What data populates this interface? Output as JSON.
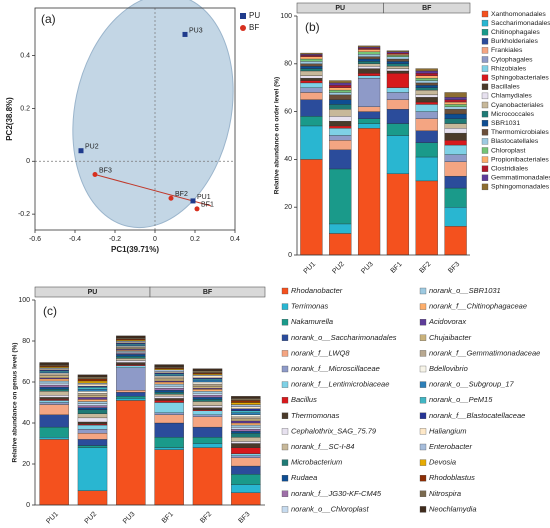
{
  "chart_data": [
    {
      "type": "scatter",
      "label": "(a)",
      "xlabel": "PC1(39.71%)",
      "ylabel": "PC2(38.8%)",
      "xlim": [
        -0.6,
        0.4
      ],
      "xticks": [
        -0.6,
        -0.4,
        -0.2,
        0,
        0.2,
        0.4
      ],
      "ylim": [
        -0.26,
        0.58
      ],
      "yticks": [
        -0.2,
        0,
        0.2,
        0.4
      ],
      "legend": "top-right",
      "series": [
        {
          "name": "PU",
          "color": "#1f3b8c",
          "marker": "square",
          "labels": [
            "PU1",
            "PU2",
            "PU3"
          ],
          "x": [
            0.19,
            -0.37,
            0.15
          ],
          "y": [
            -0.15,
            0.04,
            0.48
          ]
        },
        {
          "name": "BF",
          "color": "#d7301f",
          "marker": "circle",
          "labels": [
            "BF1",
            "BF2",
            "BF3"
          ],
          "x": [
            0.21,
            0.08,
            -0.3
          ],
          "y": [
            -0.18,
            -0.14,
            -0.05
          ]
        }
      ]
    },
    {
      "type": "stacked-bar",
      "label": "(b)",
      "ylabel": "Relative abundance on order level (%)",
      "groups": [
        "PU",
        "BF"
      ],
      "categories": [
        "PU1",
        "PU2",
        "PU3",
        "BF1",
        "BF2",
        "BF3"
      ],
      "ylim": [
        0,
        100
      ],
      "yticks": [
        0,
        20,
        40,
        60,
        80,
        100
      ],
      "series": [
        {
          "name": "Xanthomonadales",
          "color": "#f4511e",
          "values": [
            40,
            9,
            53,
            34,
            31,
            12
          ]
        },
        {
          "name": "Saccharimonadales",
          "color": "#29b6d1",
          "values": [
            14,
            4,
            2,
            16,
            10,
            8
          ]
        },
        {
          "name": "Chitinophagales",
          "color": "#1a9a8a",
          "values": [
            4,
            23,
            2,
            5,
            6,
            8
          ]
        },
        {
          "name": "Burkholderiales",
          "color": "#2b4c9b",
          "values": [
            7,
            8,
            3,
            6,
            5,
            5
          ]
        },
        {
          "name": "Frankiales",
          "color": "#f4a582",
          "values": [
            3,
            4,
            2,
            4,
            5,
            6
          ]
        },
        {
          "name": "Cytophagales",
          "color": "#8e9ac8",
          "values": [
            2,
            2,
            12,
            3,
            3,
            3
          ]
        },
        {
          "name": "Rhizobiales",
          "color": "#7fd1e6",
          "values": [
            2,
            3,
            1,
            2,
            3,
            4
          ]
        },
        {
          "name": "Sphingobacteriales",
          "color": "#d7191c",
          "values": [
            1,
            1,
            1,
            6,
            1,
            2
          ]
        },
        {
          "name": "Bacillales",
          "color": "#4a3a2a",
          "values": [
            1,
            2,
            2,
            1,
            2,
            3
          ]
        },
        {
          "name": "Chlamydiales",
          "color": "#e7e1ef",
          "values": [
            1,
            2,
            1,
            1,
            1,
            2
          ]
        },
        {
          "name": "Cyanobacteriales",
          "color": "#c7b89a",
          "values": [
            2,
            3,
            1,
            1,
            2,
            2
          ]
        },
        {
          "name": "Micrococcales",
          "color": "#1f7a75",
          "values": [
            1,
            2,
            1,
            1,
            1,
            2
          ]
        },
        {
          "name": "SBR1031",
          "color": "#0e4d92",
          "values": [
            1,
            2,
            1,
            1,
            1,
            2
          ]
        },
        {
          "name": "Thermomicrobiales",
          "color": "#6b4f3a",
          "values": [
            1,
            2,
            1,
            1,
            1,
            2
          ]
        },
        {
          "name": "Blastocatellales",
          "color": "#9ecae1",
          "values": [
            1,
            1,
            1,
            1,
            1,
            1
          ]
        },
        {
          "name": "Chloroplast",
          "color": "#74c476",
          "values": [
            1,
            1,
            1,
            0.5,
            1,
            1
          ]
        },
        {
          "name": "Propionibacteriales",
          "color": "#fdae6b",
          "values": [
            1,
            1,
            1,
            0.5,
            1,
            1
          ]
        },
        {
          "name": "Clostridiales",
          "color": "#b2182b",
          "values": [
            0.5,
            1,
            0.5,
            0.5,
            1,
            1
          ]
        },
        {
          "name": "Gemmatimonadales",
          "color": "#5e3c99",
          "values": [
            0.5,
            1,
            0.5,
            0.5,
            1,
            1
          ]
        },
        {
          "name": "Sphingomonadales",
          "color": "#8c6d31",
          "values": [
            0.5,
            1,
            0.5,
            0.5,
            1,
            2
          ]
        }
      ]
    },
    {
      "type": "stacked-bar",
      "label": "(c)",
      "ylabel": "Relative abundance on genus level (%)",
      "groups": [
        "PU",
        "BF"
      ],
      "categories": [
        "PU1",
        "PU2",
        "PU3",
        "BF1",
        "BF2",
        "BF3"
      ],
      "ylim": [
        0,
        100
      ],
      "yticks": [
        0,
        20,
        40,
        60,
        80,
        100
      ],
      "series": [
        {
          "name": "Rhodanobacter",
          "color": "#f4511e",
          "values": [
            32,
            7,
            51,
            27,
            28,
            6
          ]
        },
        {
          "name": "Terrimonas",
          "color": "#29b6d1",
          "values": [
            1,
            21,
            1,
            1,
            2,
            4
          ]
        },
        {
          "name": "Nakamurella",
          "color": "#1a9a8a",
          "values": [
            5,
            1,
            1,
            5,
            3,
            5
          ]
        },
        {
          "name": "norank_o__Saccharimonadales",
          "color": "#2b4c9b",
          "values": [
            6,
            3,
            2,
            7,
            5,
            4
          ]
        },
        {
          "name": "norank_f__LWQ8",
          "color": "#f4a582",
          "values": [
            5,
            3,
            1,
            4,
            5,
            4
          ]
        },
        {
          "name": "norank_f__Microscillaceae",
          "color": "#8e9ac8",
          "values": [
            1,
            2,
            11,
            1,
            1,
            1
          ]
        },
        {
          "name": "norank_f__Lentimicrobiaceae",
          "color": "#7fd1e6",
          "values": [
            1,
            2,
            1,
            5,
            2,
            1
          ]
        },
        {
          "name": "Bacillus",
          "color": "#d7191c",
          "values": [
            0.5,
            0.5,
            0.5,
            1,
            0.5,
            3
          ]
        },
        {
          "name": "Thermomonas",
          "color": "#4a3a2a",
          "values": [
            1,
            1,
            1,
            1,
            1,
            2
          ]
        },
        {
          "name": "Cephalothrix_SAG_75.79",
          "color": "#e7e1ef",
          "values": [
            1,
            2,
            1,
            1,
            1,
            1
          ]
        },
        {
          "name": "norank_f__SC-I-84",
          "color": "#c7b89a",
          "values": [
            2,
            2,
            1,
            1,
            2,
            2
          ]
        },
        {
          "name": "Microbacterium",
          "color": "#1f7a75",
          "values": [
            1,
            2,
            1,
            1,
            1,
            2
          ]
        },
        {
          "name": "Rudaea",
          "color": "#0e4d92",
          "values": [
            1,
            1,
            1,
            1,
            1,
            1
          ]
        },
        {
          "name": "norank_f__JG30-KF-CM45",
          "color": "#9e6fa8",
          "values": [
            1,
            1,
            0.5,
            1,
            1,
            1
          ]
        },
        {
          "name": "norank_o__Chloroplast",
          "color": "#c6dbef",
          "values": [
            1,
            1,
            0.5,
            1,
            1,
            1
          ]
        },
        {
          "name": "norank_o__SBR1031",
          "color": "#9ecae1",
          "values": [
            1,
            1,
            0.5,
            1,
            1,
            1
          ]
        },
        {
          "name": "norank_f__Chitinophagaceae",
          "color": "#fdae6b",
          "values": [
            1,
            1,
            0.5,
            1,
            1,
            1
          ]
        },
        {
          "name": "Acidovorax",
          "color": "#5e3c99",
          "values": [
            0.5,
            1,
            0.5,
            0.5,
            0.5,
            1
          ]
        },
        {
          "name": "Chujaibacter",
          "color": "#c9b27c",
          "values": [
            1,
            1,
            0.5,
            1,
            1,
            1
          ]
        },
        {
          "name": "norank_f__Gemmatimonadaceae",
          "color": "#b8a890",
          "values": [
            1,
            1,
            0.5,
            1,
            1,
            1
          ]
        },
        {
          "name": "Bdellovibrio",
          "color": "#f7f4e8",
          "values": [
            0.5,
            1,
            0.5,
            0.5,
            1,
            1
          ]
        },
        {
          "name": "norank_o__Subgroup_17",
          "color": "#2c7fb8",
          "values": [
            0.5,
            1,
            0.5,
            0.5,
            1,
            1
          ]
        },
        {
          "name": "norank_o__PeM15",
          "color": "#41b6c4",
          "values": [
            0.5,
            1,
            0.5,
            0.5,
            0.5,
            1
          ]
        },
        {
          "name": "norank_f__Blastocatellaceae",
          "color": "#253494",
          "values": [
            0.5,
            0.5,
            0.5,
            0.5,
            0.5,
            1
          ]
        },
        {
          "name": "Haliangium",
          "color": "#fee8c8",
          "values": [
            0.5,
            1,
            0.5,
            0.5,
            1,
            1
          ]
        },
        {
          "name": "Enterobacter",
          "color": "#a6bddb",
          "values": [
            0.5,
            0.5,
            0.5,
            1,
            0.5,
            1
          ]
        },
        {
          "name": "Devosia",
          "color": "#e6ab02",
          "values": [
            0.5,
            1,
            0.5,
            0.5,
            0.5,
            1
          ]
        },
        {
          "name": "Rhodoblastus",
          "color": "#8c2d04",
          "values": [
            0.5,
            1,
            0.5,
            0.5,
            0.5,
            1
          ]
        },
        {
          "name": "Nitrospira",
          "color": "#7a6a4f",
          "values": [
            0.5,
            1,
            0.5,
            0.5,
            1,
            1
          ]
        },
        {
          "name": "Neochlamydia",
          "color": "#3f2b1c",
          "values": [
            1,
            1,
            1,
            1,
            1,
            1
          ]
        }
      ]
    }
  ]
}
